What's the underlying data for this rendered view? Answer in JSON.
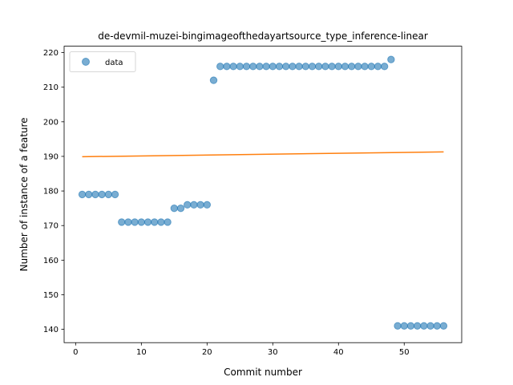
{
  "chart_data": {
    "type": "scatter",
    "title": "de-devmil-muzei-bingimageofthedayartsource_type_inference-linear",
    "xlabel": "Commit number",
    "ylabel": "Number of instance of a feature",
    "xlim": [
      -1.75,
      58.75
    ],
    "ylim": [
      136.15,
      221.85
    ],
    "xticks": [
      0,
      10,
      20,
      30,
      40,
      50
    ],
    "yticks": [
      140,
      150,
      160,
      170,
      180,
      190,
      200,
      210,
      220
    ],
    "grid": false,
    "legend_position": "upper left",
    "series": [
      {
        "name": "data",
        "kind": "scatter",
        "color": "#1f77b4",
        "x": [
          1,
          2,
          3,
          4,
          5,
          6,
          7,
          8,
          9,
          10,
          11,
          12,
          13,
          14,
          15,
          16,
          17,
          18,
          19,
          20,
          21,
          22,
          23,
          24,
          25,
          26,
          27,
          28,
          29,
          30,
          31,
          32,
          33,
          34,
          35,
          36,
          37,
          38,
          39,
          40,
          41,
          42,
          43,
          44,
          45,
          46,
          47,
          48,
          49,
          50,
          51,
          52,
          53,
          54,
          55,
          56
        ],
        "y": [
          179,
          179,
          179,
          179,
          179,
          179,
          171,
          171,
          171,
          171,
          171,
          171,
          171,
          171,
          175,
          175,
          176,
          176,
          176,
          176,
          212,
          216,
          216,
          216,
          216,
          216,
          216,
          216,
          216,
          216,
          216,
          216,
          216,
          216,
          216,
          216,
          216,
          216,
          216,
          216,
          216,
          216,
          216,
          216,
          216,
          216,
          216,
          218,
          141,
          141,
          141,
          141,
          141,
          141,
          141,
          141
        ]
      },
      {
        "kind": "line",
        "color": "#ff7f0e",
        "x": [
          1,
          56
        ],
        "y": [
          189.9,
          191.3
        ]
      }
    ]
  }
}
